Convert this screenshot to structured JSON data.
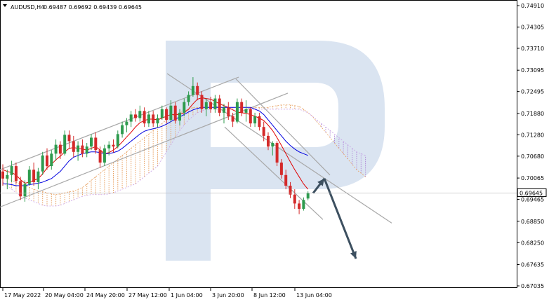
{
  "header": {
    "symbol": "AUDUSD,H4",
    "ohlc": "0.69487 0.69692 0.69439 0.69645"
  },
  "chart_data": {
    "type": "line",
    "symbol": "AUDUSD",
    "timeframe": "H4",
    "last_price": 0.69645,
    "y_ticks": [
      "0.74910",
      "0.74305",
      "0.73710",
      "0.73095",
      "0.72495",
      "0.71880",
      "0.71280",
      "0.70680",
      "0.70065",
      "0.69465",
      "0.68850",
      "0.68250",
      "0.67635",
      "0.67035"
    ],
    "x_ticks": [
      "17 May 2022",
      "20 May 04:00",
      "24 May 20:00",
      "27 May 12:00",
      "1 Jun 04:00",
      "3 Jun 20:00",
      "8 Jun 12:00",
      "13 Jun 04:00"
    ],
    "ylim": [
      0.67035,
      0.7491
    ],
    "series": [
      {
        "type": "candlestick",
        "candles": [
          [
            0.7025,
            0.7045,
            0.6985,
            0.7005
          ],
          [
            0.7005,
            0.703,
            0.6975,
            0.7015
          ],
          [
            0.7015,
            0.7055,
            0.6995,
            0.704
          ],
          [
            0.704,
            0.705,
            0.699,
            0.6998
          ],
          [
            0.6998,
            0.701,
            0.6945,
            0.6955
          ],
          [
            0.6955,
            0.7,
            0.694,
            0.699
          ],
          [
            0.699,
            0.704,
            0.6985,
            0.703
          ],
          [
            0.703,
            0.705,
            0.6985,
            0.6995
          ],
          [
            0.6995,
            0.7035,
            0.6975,
            0.7025
          ],
          [
            0.7025,
            0.708,
            0.7015,
            0.707
          ],
          [
            0.707,
            0.709,
            0.703,
            0.704
          ],
          [
            0.704,
            0.7085,
            0.703,
            0.7075
          ],
          [
            0.7075,
            0.7115,
            0.7055,
            0.71
          ],
          [
            0.71,
            0.711,
            0.706,
            0.7075
          ],
          [
            0.7075,
            0.714,
            0.707,
            0.7128
          ],
          [
            0.7128,
            0.714,
            0.709,
            0.711
          ],
          [
            0.711,
            0.7125,
            0.7065,
            0.708
          ],
          [
            0.708,
            0.711,
            0.7055,
            0.7098
          ],
          [
            0.7098,
            0.7115,
            0.7065,
            0.7075
          ],
          [
            0.7075,
            0.7105,
            0.7065,
            0.7095
          ],
          [
            0.7095,
            0.713,
            0.7085,
            0.712
          ],
          [
            0.712,
            0.7135,
            0.7075,
            0.7085
          ],
          [
            0.7085,
            0.7095,
            0.7035,
            0.705
          ],
          [
            0.705,
            0.71,
            0.704,
            0.709
          ],
          [
            0.709,
            0.711,
            0.707,
            0.71
          ],
          [
            0.71,
            0.7115,
            0.7078,
            0.7095
          ],
          [
            0.7095,
            0.714,
            0.709,
            0.713
          ],
          [
            0.713,
            0.7165,
            0.712,
            0.7155
          ],
          [
            0.7155,
            0.7175,
            0.7135,
            0.7165
          ],
          [
            0.7165,
            0.7195,
            0.715,
            0.7185
          ],
          [
            0.7185,
            0.72,
            0.7165,
            0.7175
          ],
          [
            0.7175,
            0.721,
            0.7165,
            0.7195
          ],
          [
            0.7195,
            0.7205,
            0.715,
            0.716
          ],
          [
            0.716,
            0.7195,
            0.715,
            0.7185
          ],
          [
            0.7185,
            0.7195,
            0.715,
            0.716
          ],
          [
            0.716,
            0.7185,
            0.715,
            0.7175
          ],
          [
            0.7175,
            0.721,
            0.717,
            0.72
          ],
          [
            0.72,
            0.7205,
            0.716,
            0.717
          ],
          [
            0.717,
            0.7225,
            0.7165,
            0.721
          ],
          [
            0.721,
            0.722,
            0.716,
            0.7168
          ],
          [
            0.7168,
            0.72,
            0.7155,
            0.719
          ],
          [
            0.719,
            0.723,
            0.718,
            0.722
          ],
          [
            0.722,
            0.725,
            0.721,
            0.724
          ],
          [
            0.724,
            0.729,
            0.7235,
            0.7265
          ],
          [
            0.7265,
            0.7275,
            0.7225,
            0.724
          ],
          [
            0.724,
            0.725,
            0.719,
            0.72
          ],
          [
            0.72,
            0.723,
            0.718,
            0.722
          ],
          [
            0.722,
            0.7235,
            0.719,
            0.72
          ],
          [
            0.72,
            0.724,
            0.719,
            0.723
          ],
          [
            0.723,
            0.724,
            0.718,
            0.719
          ],
          [
            0.719,
            0.7215,
            0.716,
            0.7205
          ],
          [
            0.7205,
            0.722,
            0.717,
            0.718
          ],
          [
            0.718,
            0.719,
            0.715,
            0.7165
          ],
          [
            0.7165,
            0.723,
            0.716,
            0.722
          ],
          [
            0.722,
            0.723,
            0.718,
            0.719
          ],
          [
            0.719,
            0.7225,
            0.7165,
            0.72
          ],
          [
            0.72,
            0.7205,
            0.715,
            0.716
          ],
          [
            0.716,
            0.719,
            0.715,
            0.718
          ],
          [
            0.718,
            0.719,
            0.714,
            0.715
          ],
          [
            0.715,
            0.7165,
            0.711,
            0.7125
          ],
          [
            0.7125,
            0.7135,
            0.7085,
            0.7095
          ],
          [
            0.7095,
            0.711,
            0.707,
            0.7105
          ],
          [
            0.7105,
            0.711,
            0.704,
            0.705
          ],
          [
            0.705,
            0.706,
            0.7005,
            0.7015
          ],
          [
            0.7015,
            0.703,
            0.6975,
            0.6985
          ],
          [
            0.6985,
            0.6995,
            0.695,
            0.696
          ],
          [
            0.696,
            0.6975,
            0.692,
            0.6935
          ],
          [
            0.6935,
            0.6945,
            0.6905,
            0.692
          ],
          [
            0.692,
            0.6952,
            0.6915,
            0.6945
          ],
          [
            0.6949,
            0.6969,
            0.6944,
            0.6964
          ]
        ]
      },
      {
        "name": "",
        "color": "#e00000",
        "values": [
          0.703,
          0.7025,
          0.7022,
          0.7015,
          0.7002,
          0.6992,
          0.6995,
          0.7,
          0.7005,
          0.7018,
          0.7035,
          0.7045,
          0.7058,
          0.7068,
          0.708,
          0.709,
          0.7092,
          0.709,
          0.7088,
          0.7085,
          0.709,
          0.7095,
          0.7085,
          0.7075,
          0.7078,
          0.7085,
          0.7095,
          0.7108,
          0.7122,
          0.7135,
          0.715,
          0.7162,
          0.7168,
          0.7172,
          0.7172,
          0.717,
          0.7175,
          0.718,
          0.7185,
          0.7185,
          0.7185,
          0.719,
          0.72,
          0.7215,
          0.7228,
          0.7232,
          0.723,
          0.7228,
          0.7222,
          0.7215,
          0.721,
          0.7205,
          0.7198,
          0.7192,
          0.719,
          0.7188,
          0.7185,
          0.718,
          0.7175,
          0.7168,
          0.7155,
          0.714,
          0.712,
          0.7098,
          0.7075,
          0.7052,
          0.703,
          0.701,
          0.699,
          0.6975
        ]
      },
      {
        "name": "",
        "color": "#0000e0",
        "values": [
          0.699,
          0.699,
          0.6988,
          0.6985,
          0.6985,
          0.6985,
          0.6988,
          0.699,
          0.6992,
          0.6995,
          0.7,
          0.7005,
          0.7015,
          0.7025,
          0.704,
          0.7055,
          0.7065,
          0.707,
          0.7075,
          0.7078,
          0.708,
          0.708,
          0.7078,
          0.7075,
          0.7075,
          0.7078,
          0.7082,
          0.709,
          0.71,
          0.711,
          0.712,
          0.713,
          0.7138,
          0.7142,
          0.7145,
          0.7148,
          0.7152,
          0.7158,
          0.7165,
          0.7172,
          0.7178,
          0.7185,
          0.7192,
          0.7198,
          0.7202,
          0.7205,
          0.7205,
          0.7205,
          0.7205,
          0.7205,
          0.7205,
          0.7205,
          0.7205,
          0.7205,
          0.7205,
          0.7205,
          0.7205,
          0.72,
          0.7195,
          0.7185,
          0.717,
          0.7155,
          0.714,
          0.7125,
          0.711,
          0.7098,
          0.7088,
          0.708,
          0.7075,
          0.707
        ]
      }
    ],
    "cloud": {
      "span_a": [
        0.701,
        0.7005,
        0.7,
        0.6995,
        0.699,
        0.6985,
        0.698,
        0.6975,
        0.697,
        0.6968,
        0.6965,
        0.6962,
        0.696,
        0.6962,
        0.6965,
        0.6968,
        0.697,
        0.6975,
        0.698,
        0.699,
        0.7,
        0.701,
        0.702,
        0.703,
        0.704,
        0.705,
        0.706,
        0.707,
        0.708,
        0.709,
        0.71,
        0.711,
        0.712,
        0.713,
        0.714,
        0.715,
        0.716,
        0.717,
        0.718,
        0.7185,
        0.719,
        0.7195,
        0.72,
        0.7205,
        0.7205,
        0.7205,
        0.7205,
        0.7205,
        0.7205,
        0.7205,
        0.7205,
        0.7205,
        0.7205,
        0.7205,
        0.7205,
        0.7205,
        0.7205,
        0.7205,
        0.7205,
        0.7205,
        0.7205,
        0.7208,
        0.721,
        0.7212,
        0.7212,
        0.7212,
        0.721,
        0.7208,
        0.72,
        0.719,
        0.718,
        0.7165,
        0.715,
        0.7135,
        0.712,
        0.7105,
        0.709,
        0.7075,
        0.706,
        0.7045,
        0.703,
        0.702,
        0.701
      ],
      "span_b": [
        0.6995,
        0.6985,
        0.6975,
        0.6965,
        0.6958,
        0.695,
        0.6945,
        0.694,
        0.6935,
        0.693,
        0.6928,
        0.6928,
        0.6928,
        0.693,
        0.6935,
        0.694,
        0.6945,
        0.695,
        0.6955,
        0.6958,
        0.696,
        0.696,
        0.696,
        0.696,
        0.6962,
        0.6965,
        0.697,
        0.6975,
        0.698,
        0.6985,
        0.699,
        0.7,
        0.701,
        0.702,
        0.703,
        0.704,
        0.706,
        0.708,
        0.71,
        0.712,
        0.714,
        0.7155,
        0.717,
        0.718,
        0.719,
        0.7195,
        0.72,
        0.72,
        0.72,
        0.72,
        0.72,
        0.72,
        0.72,
        0.72,
        0.72,
        0.72,
        0.72,
        0.72,
        0.72,
        0.72,
        0.72,
        0.72,
        0.72,
        0.72,
        0.72,
        0.72,
        0.72,
        0.72,
        0.7195,
        0.719,
        0.718,
        0.717,
        0.716,
        0.715,
        0.714,
        0.713,
        0.712,
        0.711,
        0.71,
        0.709,
        0.708,
        0.7075,
        0.707
      ]
    },
    "forecast": [
      0.6964,
      0.7005,
      0.678
    ],
    "grid": false
  }
}
